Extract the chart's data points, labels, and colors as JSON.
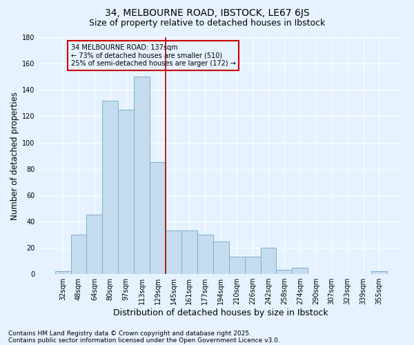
{
  "title1": "34, MELBOURNE ROAD, IBSTOCK, LE67 6JS",
  "title2": "Size of property relative to detached houses in Ibstock",
  "xlabel": "Distribution of detached houses by size in Ibstock",
  "ylabel": "Number of detached properties",
  "bins": [
    "32sqm",
    "48sqm",
    "64sqm",
    "80sqm",
    "97sqm",
    "113sqm",
    "129sqm",
    "145sqm",
    "161sqm",
    "177sqm",
    "194sqm",
    "210sqm",
    "226sqm",
    "242sqm",
    "258sqm",
    "274sqm",
    "290sqm",
    "307sqm",
    "323sqm",
    "339sqm",
    "355sqm"
  ],
  "values": [
    2,
    30,
    45,
    132,
    125,
    150,
    85,
    33,
    33,
    30,
    25,
    13,
    13,
    20,
    3,
    5,
    0,
    0,
    0,
    0,
    2
  ],
  "bar_color": "#C5DCEE",
  "bar_edge_color": "#7BAFD4",
  "vline_color": "#AA0000",
  "annotation_text": "34 MELBOURNE ROAD: 137sqm\n← 73% of detached houses are smaller (510)\n25% of semi-detached houses are larger (172) →",
  "annotation_box_color": "#CC0000",
  "ylim": [
    0,
    180
  ],
  "yticks": [
    0,
    20,
    40,
    60,
    80,
    100,
    120,
    140,
    160,
    180
  ],
  "background_color": "#E6F2FF",
  "footer1": "Contains HM Land Registry data © Crown copyright and database right 2025.",
  "footer2": "Contains public sector information licensed under the Open Government Licence v3.0.",
  "grid_color": "#FFFFFF",
  "title_fontsize": 10,
  "subtitle_fontsize": 9,
  "axis_label_fontsize": 8.5,
  "tick_fontsize": 7,
  "annotation_fontsize": 7,
  "footer_fontsize": 6.5
}
